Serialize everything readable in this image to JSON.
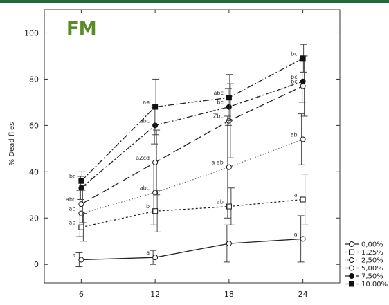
{
  "colors": {
    "top_bar": "#1f6b3a",
    "title": "#5a8a2b"
  },
  "chart_data": {
    "type": "line",
    "title": "FM",
    "xlabel": "",
    "ylabel": "% Dead flies",
    "x": [
      6,
      12,
      18,
      24
    ],
    "xlim": [
      3,
      27
    ],
    "ylim": [
      -8,
      110
    ],
    "yticks": [
      0,
      20,
      40,
      60,
      80,
      100
    ],
    "grid": false,
    "legend": "right-bottom",
    "series": [
      {
        "name": "0,00%",
        "values": [
          2,
          3,
          9,
          11
        ],
        "errors": [
          3,
          3,
          8,
          10
        ],
        "labels": [
          "a",
          "a",
          "",
          "a"
        ],
        "style": "solid",
        "marker": "open-circle"
      },
      {
        "name": "1,25%",
        "values": [
          16,
          23,
          25,
          28
        ],
        "errors": [
          6,
          9,
          8,
          11
        ],
        "labels": [
          "ab",
          "b",
          "ab",
          "a"
        ],
        "style": "short-dash",
        "marker": "open-square"
      },
      {
        "name": "2,50%",
        "values": [
          22,
          31,
          42,
          54
        ],
        "errors": [
          10,
          14,
          22,
          11
        ],
        "labels": [
          "ab",
          "abc",
          "a ab",
          "ab"
        ],
        "style": "dotted",
        "marker": "open-circle"
      },
      {
        "name": "5,00%",
        "values": [
          26,
          44,
          62,
          77
        ],
        "errors": [
          8,
          14,
          16,
          13
        ],
        "labels": [
          "abc",
          "aZcd",
          "Zbc",
          "bc"
        ],
        "style": "long-dash",
        "marker": "open-circle"
      },
      {
        "name": "7,50%",
        "values": [
          33,
          60,
          68,
          79
        ],
        "errors": [
          5,
          8,
          8,
          9
        ],
        "labels": [
          "",
          "abc",
          "bc",
          "bc"
        ],
        "style": "dash-dot",
        "marker": "filled-circle"
      },
      {
        "name": "10.00%",
        "values": [
          36,
          68,
          72,
          89
        ],
        "errors": [
          4,
          12,
          10,
          6
        ],
        "labels": [
          "bc",
          "ae",
          "abc",
          "bc"
        ],
        "style": "dash-dot",
        "marker": "filled-square"
      }
    ]
  }
}
